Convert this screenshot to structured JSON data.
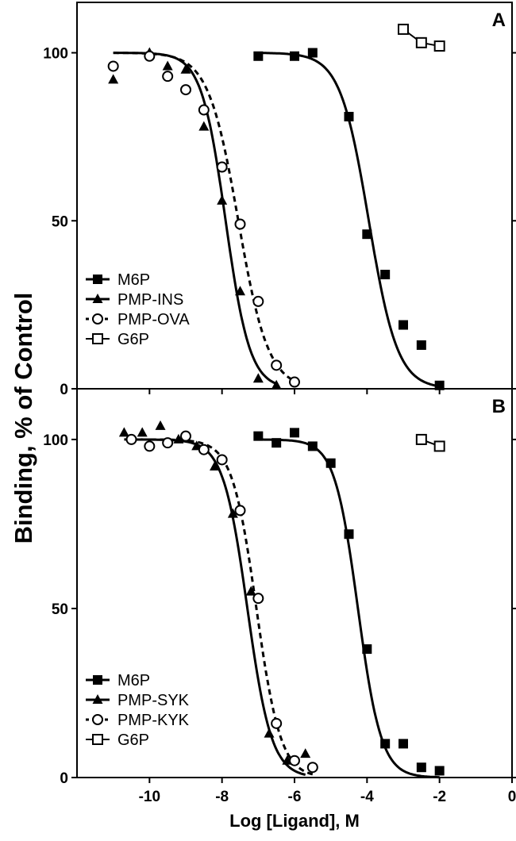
{
  "ylabel": "Binding, % of Control",
  "xlabel": "Log [Ligand], M",
  "chart_data": [
    {
      "type": "scatter",
      "panel_label": "A",
      "xlim": [
        -12,
        0
      ],
      "ylim": [
        0,
        115
      ],
      "xticks": [
        -10,
        -8,
        -6,
        -4,
        -2,
        0
      ],
      "yticks": [
        0,
        50,
        100
      ],
      "grid": false,
      "legend_position": "bottom-left",
      "legend": [
        "M6P",
        "PMP-INS",
        "PMP-OVA",
        "G6P"
      ],
      "series": [
        {
          "name": "M6P",
          "marker": "filled-square",
          "fit": "solid",
          "x": [
            -7,
            -6,
            -5.5,
            -4.5,
            -4,
            -3.5,
            -3,
            -2.5,
            -2
          ],
          "y": [
            99,
            99,
            100,
            81,
            46,
            34,
            19,
            13,
            1
          ],
          "fit_params": {
            "top": 100,
            "bottom": 0,
            "log_ic50": -3.95,
            "slope": 1.1,
            "x_range": [
              -7,
              -2
            ]
          }
        },
        {
          "name": "PMP-INS",
          "marker": "filled-triangle",
          "fit": "solid",
          "x": [
            -11,
            -10,
            -9.5,
            -9,
            -8.5,
            -8,
            -7.5,
            -7,
            -6.5
          ],
          "y": [
            92,
            100,
            96,
            95,
            78,
            56,
            29,
            3,
            1
          ],
          "fit_params": {
            "top": 100,
            "bottom": 0,
            "log_ic50": -7.9,
            "slope": 1.3,
            "x_range": [
              -11,
              -6.5
            ]
          }
        },
        {
          "name": "PMP-OVA",
          "marker": "open-circle",
          "fit": "dashed",
          "x": [
            -11,
            -10,
            -9.5,
            -9,
            -8.5,
            -8,
            -7.5,
            -7,
            -6.5,
            -6
          ],
          "y": [
            96,
            99,
            93,
            89,
            83,
            66,
            49,
            26,
            7,
            2
          ],
          "fit_params": {
            "top": 100,
            "bottom": 0,
            "log_ic50": -7.55,
            "slope": 1.05,
            "x_range": [
              -11,
              -6
            ]
          }
        },
        {
          "name": "G6P",
          "marker": "open-square",
          "fit": "connect",
          "x": [
            -3,
            -2.5,
            -2
          ],
          "y": [
            107,
            103,
            102
          ]
        }
      ]
    },
    {
      "type": "scatter",
      "panel_label": "B",
      "xlim": [
        -12,
        0
      ],
      "ylim": [
        0,
        115
      ],
      "xticks": [
        -10,
        -8,
        -6,
        -4,
        -2,
        0
      ],
      "yticks": [
        0,
        50,
        100
      ],
      "grid": false,
      "legend_position": "bottom-left",
      "legend": [
        "M6P",
        "PMP-SYK",
        "PMP-KYK",
        "G6P"
      ],
      "series": [
        {
          "name": "M6P",
          "marker": "filled-square",
          "fit": "solid",
          "x": [
            -7,
            -6.5,
            -6,
            -5.5,
            -5,
            -4.5,
            -4,
            -3.5,
            -3,
            -2.5,
            -2
          ],
          "y": [
            101,
            99,
            102,
            98,
            93,
            72,
            38,
            10,
            10,
            3,
            2
          ],
          "fit_params": {
            "top": 100,
            "bottom": 0,
            "log_ic50": -4.25,
            "slope": 1.35,
            "x_range": [
              -7,
              -2
            ]
          }
        },
        {
          "name": "PMP-SYK",
          "marker": "filled-triangle",
          "fit": "solid",
          "x": [
            -10.7,
            -10.2,
            -9.7,
            -9.2,
            -8.7,
            -8.2,
            -7.7,
            -7.2,
            -6.7,
            -6.2,
            -5.7
          ],
          "y": [
            102,
            102,
            104,
            100,
            98,
            92,
            78,
            55,
            13,
            5,
            7
          ],
          "fit_params": {
            "top": 100,
            "bottom": 0,
            "log_ic50": -7.3,
            "slope": 1.3,
            "x_range": [
              -10.7,
              -5.7
            ]
          }
        },
        {
          "name": "PMP-KYK",
          "marker": "open-circle",
          "fit": "dashed",
          "x": [
            -10.5,
            -10,
            -9.5,
            -9,
            -8.5,
            -8,
            -7.5,
            -7,
            -6.5,
            -6,
            -5.5
          ],
          "y": [
            100,
            98,
            99,
            101,
            97,
            94,
            79,
            53,
            16,
            5,
            3
          ],
          "fit_params": {
            "top": 100,
            "bottom": 0,
            "log_ic50": -7.05,
            "slope": 1.3,
            "x_range": [
              -10.5,
              -5.5
            ]
          }
        },
        {
          "name": "G6P",
          "marker": "open-square",
          "fit": "connect",
          "x": [
            -2.5,
            -2
          ],
          "y": [
            100,
            98
          ]
        }
      ]
    }
  ]
}
